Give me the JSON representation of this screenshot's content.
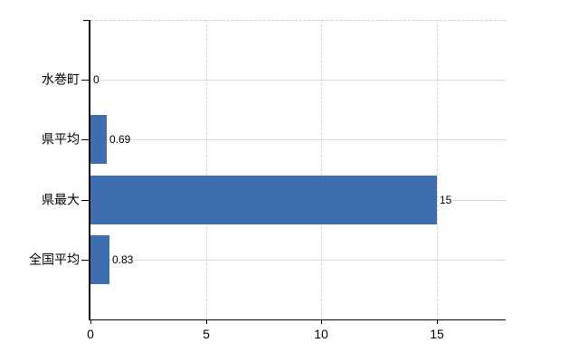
{
  "chart_data": {
    "type": "bar",
    "orientation": "horizontal",
    "categories": [
      "水巻町",
      "県平均",
      "県最大",
      "全国平均"
    ],
    "values": [
      0,
      0.69,
      15,
      0.83
    ],
    "value_labels": [
      "0",
      "0.69",
      "15",
      "0.83"
    ],
    "x_ticks": [
      0,
      5,
      10,
      15
    ],
    "x_tick_labels": [
      "0",
      "5",
      "10",
      "15"
    ],
    "xlim": [
      0,
      18
    ],
    "grid": true,
    "legend": "none",
    "bar_color": "#3e6db0",
    "axis_color": "#000000",
    "text_color": "#000000",
    "background_color": "#ffffff",
    "gridline_color_horizontal": "#d6ddd3",
    "gridline_color_vertical": "#d9d3d9",
    "top_border_color": "#d2cbd2"
  }
}
